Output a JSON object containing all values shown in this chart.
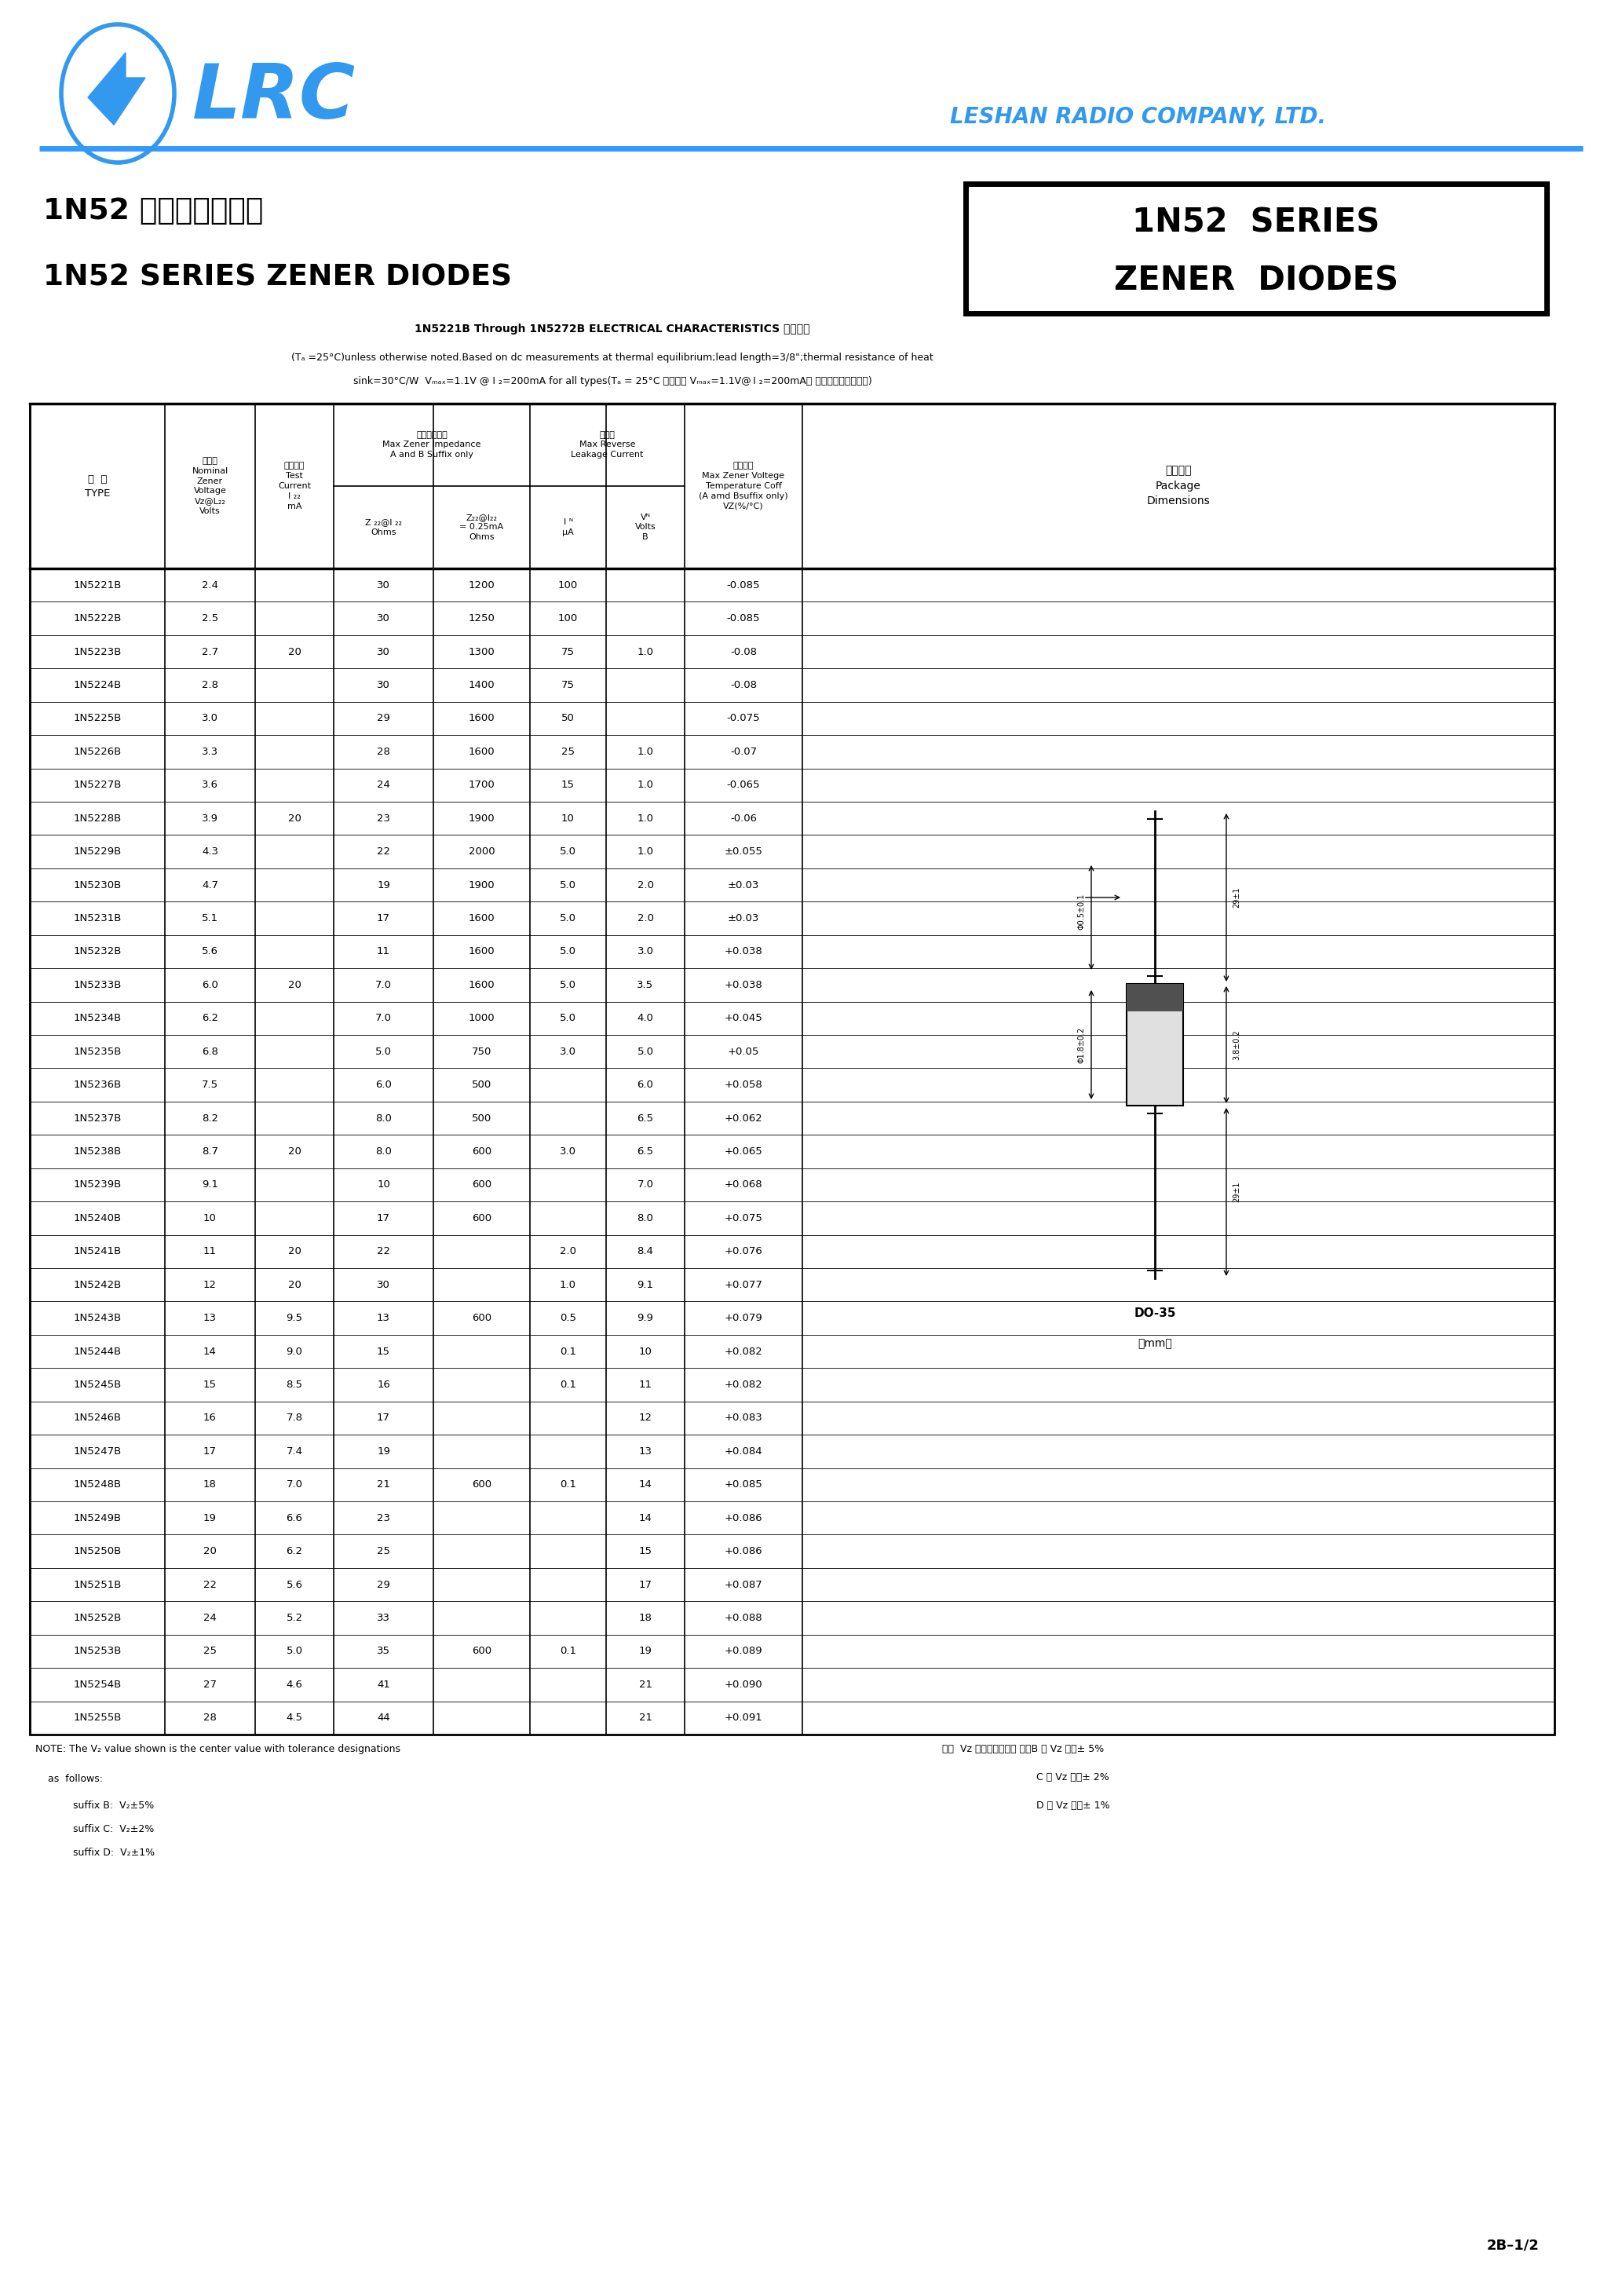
{
  "bg_color": "#ffffff",
  "lrc_color": "#3399ee",
  "table_data": [
    [
      "1N5221B",
      "2.4",
      "",
      "30",
      "1200",
      "100",
      "",
      "-0.085"
    ],
    [
      "1N5222B",
      "2.5",
      "",
      "30",
      "1250",
      "100",
      "",
      "-0.085"
    ],
    [
      "1N5223B",
      "2.7",
      "20",
      "30",
      "1300",
      "75",
      "1.0",
      "-0.08"
    ],
    [
      "1N5224B",
      "2.8",
      "",
      "30",
      "1400",
      "75",
      "",
      "-0.08"
    ],
    [
      "1N5225B",
      "3.0",
      "",
      "29",
      "1600",
      "50",
      "",
      "-0.075"
    ],
    [
      "1N5226B",
      "3.3",
      "",
      "28",
      "1600",
      "25",
      "1.0",
      "-0.07"
    ],
    [
      "1N5227B",
      "3.6",
      "",
      "24",
      "1700",
      "15",
      "1.0",
      "-0.065"
    ],
    [
      "1N5228B",
      "3.9",
      "20",
      "23",
      "1900",
      "10",
      "1.0",
      "-0.06"
    ],
    [
      "1N5229B",
      "4.3",
      "",
      "22",
      "2000",
      "5.0",
      "1.0",
      "±0.055"
    ],
    [
      "1N5230B",
      "4.7",
      "",
      "19",
      "1900",
      "5.0",
      "2.0",
      "±0.03"
    ],
    [
      "1N5231B",
      "5.1",
      "",
      "17",
      "1600",
      "5.0",
      "2.0",
      "±0.03"
    ],
    [
      "1N5232B",
      "5.6",
      "",
      "11",
      "1600",
      "5.0",
      "3.0",
      "+0.038"
    ],
    [
      "1N5233B",
      "6.0",
      "20",
      "7.0",
      "1600",
      "5.0",
      "3.5",
      "+0.038"
    ],
    [
      "1N5234B",
      "6.2",
      "",
      "7.0",
      "1000",
      "5.0",
      "4.0",
      "+0.045"
    ],
    [
      "1N5235B",
      "6.8",
      "",
      "5.0",
      "750",
      "3.0",
      "5.0",
      "+0.05"
    ],
    [
      "1N5236B",
      "7.5",
      "",
      "6.0",
      "500",
      "",
      "6.0",
      "+0.058"
    ],
    [
      "1N5237B",
      "8.2",
      "",
      "8.0",
      "500",
      "",
      "6.5",
      "+0.062"
    ],
    [
      "1N5238B",
      "8.7",
      "20",
      "8.0",
      "600",
      "3.0",
      "6.5",
      "+0.065"
    ],
    [
      "1N5239B",
      "9.1",
      "",
      "10",
      "600",
      "",
      "7.0",
      "+0.068"
    ],
    [
      "1N5240B",
      "10",
      "",
      "17",
      "600",
      "",
      "8.0",
      "+0.075"
    ],
    [
      "1N5241B",
      "11",
      "20",
      "22",
      "",
      "2.0",
      "8.4",
      "+0.076"
    ],
    [
      "1N5242B",
      "12",
      "20",
      "30",
      "",
      "1.0",
      "9.1",
      "+0.077"
    ],
    [
      "1N5243B",
      "13",
      "9.5",
      "13",
      "600",
      "0.5",
      "9.9",
      "+0.079"
    ],
    [
      "1N5244B",
      "14",
      "9.0",
      "15",
      "",
      "0.1",
      "10",
      "+0.082"
    ],
    [
      "1N5245B",
      "15",
      "8.5",
      "16",
      "",
      "0.1",
      "11",
      "+0.082"
    ],
    [
      "1N5246B",
      "16",
      "7.8",
      "17",
      "",
      "",
      "12",
      "+0.083"
    ],
    [
      "1N5247B",
      "17",
      "7.4",
      "19",
      "",
      "",
      "13",
      "+0.084"
    ],
    [
      "1N5248B",
      "18",
      "7.0",
      "21",
      "600",
      "0.1",
      "14",
      "+0.085"
    ],
    [
      "1N5249B",
      "19",
      "6.6",
      "23",
      "",
      "",
      "14",
      "+0.086"
    ],
    [
      "1N5250B",
      "20",
      "6.2",
      "25",
      "",
      "",
      "15",
      "+0.086"
    ],
    [
      "1N5251B",
      "22",
      "5.6",
      "29",
      "",
      "",
      "17",
      "+0.087"
    ],
    [
      "1N5252B",
      "24",
      "5.2",
      "33",
      "",
      "",
      "18",
      "+0.088"
    ],
    [
      "1N5253B",
      "25",
      "5.0",
      "35",
      "600",
      "0.1",
      "19",
      "+0.089"
    ],
    [
      "1N5254B",
      "27",
      "4.6",
      "41",
      "",
      "",
      "21",
      "+0.090"
    ],
    [
      "1N5255B",
      "28",
      "4.5",
      "44",
      "",
      "",
      "21",
      "+0.091"
    ]
  ]
}
